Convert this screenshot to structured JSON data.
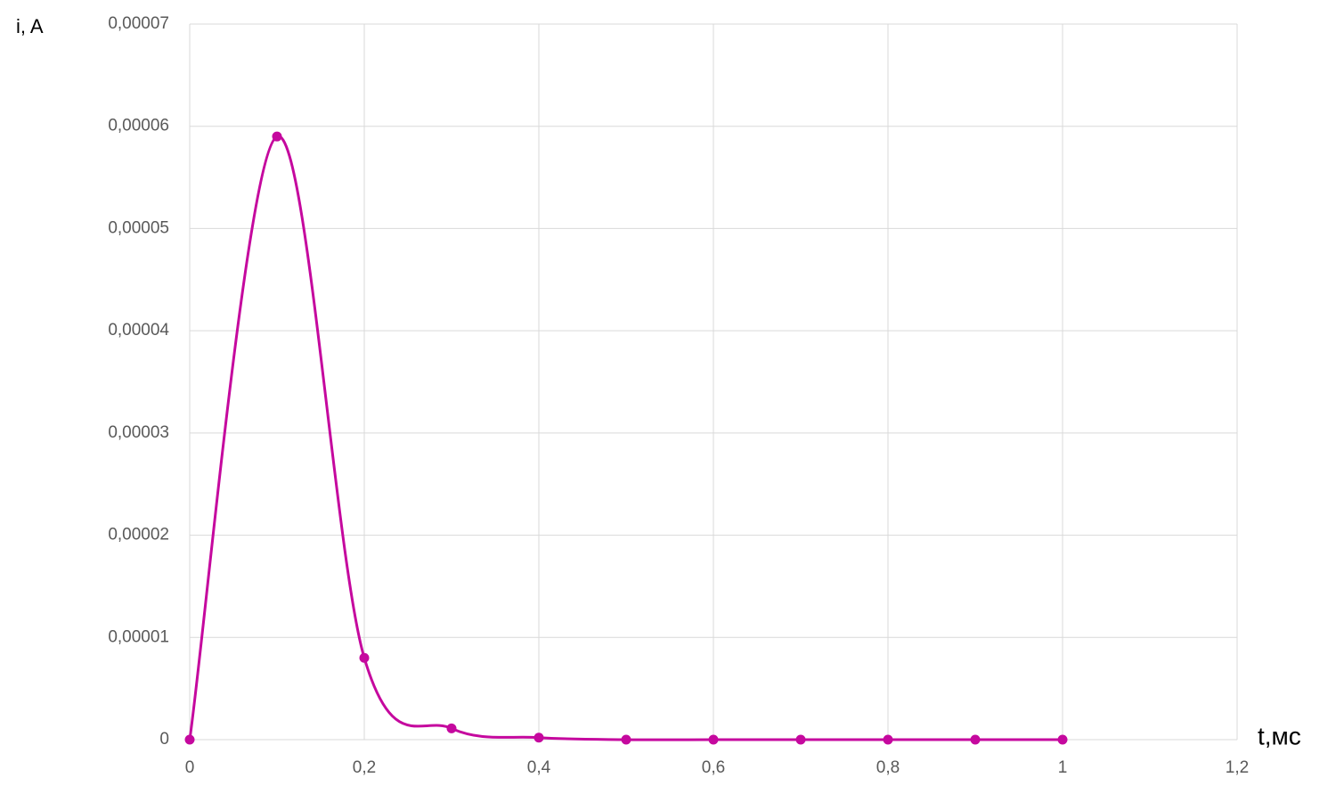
{
  "chart_data": {
    "type": "line",
    "x_label": "t,мс",
    "y_label": "i, A",
    "x": [
      0,
      0.1,
      0.2,
      0.3,
      0.4,
      0.5,
      0.6,
      0.7,
      0.8,
      0.9,
      1
    ],
    "series": [
      {
        "name": "i",
        "color": "#c5089e",
        "values": [
          0,
          5.9e-05,
          8e-06,
          1.1e-06,
          2e-07,
          0,
          0,
          0,
          0,
          0,
          0
        ]
      }
    ],
    "xlim": [
      0,
      1.2
    ],
    "xticks": [
      0,
      {
        "value": 0.2,
        "label": "0,2"
      },
      {
        "value": 0.4,
        "label": "0,4"
      },
      {
        "value": 0.6,
        "label": "0,6"
      },
      {
        "value": 0.8,
        "label": "0,8"
      },
      1,
      {
        "value": 1.2,
        "label": "1,2"
      }
    ],
    "ylim": [
      0,
      7e-05
    ],
    "yticks": [
      0,
      {
        "value": 1e-05,
        "label": "0,00001"
      },
      {
        "value": 2e-05,
        "label": "0,00002"
      },
      {
        "value": 3e-05,
        "label": "0,00003"
      },
      {
        "value": 4e-05,
        "label": "0,00004"
      },
      {
        "value": 5e-05,
        "label": "0,00005"
      },
      {
        "value": 6e-05,
        "label": "0,00006"
      },
      {
        "value": 7e-05,
        "label": "0,00007"
      }
    ],
    "grid": true,
    "smooth": true
  }
}
